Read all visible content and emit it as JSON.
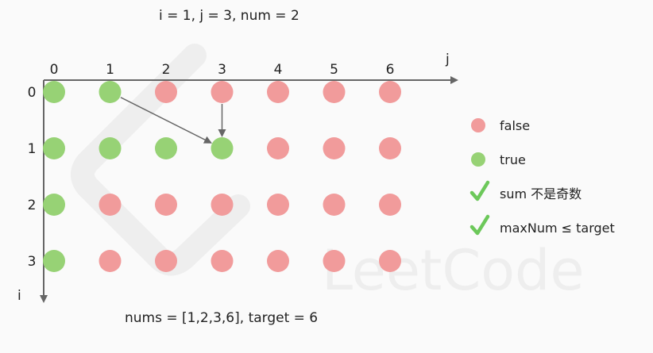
{
  "header": {
    "status": "i = 1, j = 3, num = 2"
  },
  "footer": {
    "caption": "nums = [1,2,3,6], target = 6"
  },
  "watermark": {
    "text": "LeetCode"
  },
  "axes": {
    "x_label": "j",
    "y_label": "i"
  },
  "grid": {
    "col_labels": [
      "0",
      "1",
      "2",
      "3",
      "4",
      "5",
      "6"
    ],
    "row_labels": [
      "0",
      "1",
      "2",
      "3"
    ],
    "states": [
      [
        true,
        true,
        false,
        false,
        false,
        false,
        false
      ],
      [
        true,
        true,
        true,
        true,
        false,
        false,
        false
      ],
      [
        true,
        false,
        false,
        false,
        false,
        false,
        false
      ],
      [
        true,
        false,
        false,
        false,
        false,
        false,
        false
      ]
    ],
    "arrows": [
      {
        "from": [
          0,
          1
        ],
        "to": [
          1,
          3
        ]
      },
      {
        "from": [
          0,
          3
        ],
        "to": [
          1,
          3
        ]
      }
    ]
  },
  "colors": {
    "true": "#97d275",
    "false": "#f19b9b",
    "check": "#6cc85a",
    "axis": "#666666",
    "watermark": "#eeeeee"
  },
  "legend": {
    "false_label": "false",
    "true_label": "true",
    "check1_label": "sum 不是奇数",
    "check2_label": "maxNum ≤ target"
  }
}
